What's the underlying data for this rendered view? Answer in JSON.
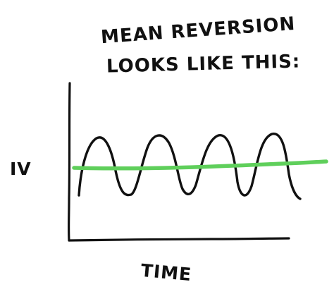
{
  "diagram": {
    "title_line_1": "MEAN REVERSION",
    "title_line_2": "LOOKS LIKE THIS:",
    "y_axis_label": "IV",
    "x_axis_label": "TIME"
  },
  "colors": {
    "ink": "#111111",
    "mean_line": "#5fcf5b",
    "background": "#ffffff"
  }
}
